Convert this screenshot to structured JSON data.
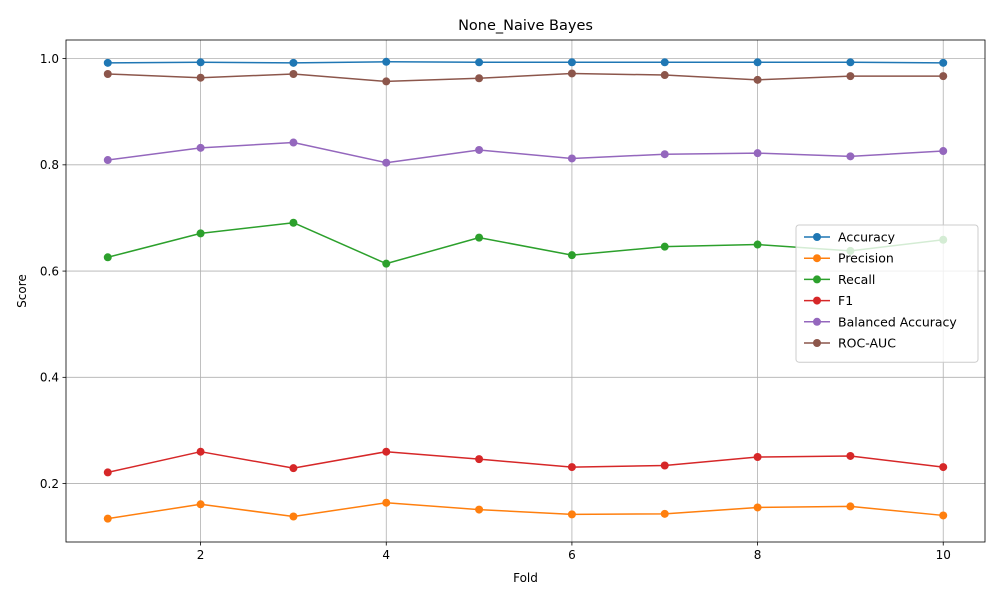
{
  "chart_data": {
    "type": "line",
    "title": "None_Naive Bayes",
    "xlabel": "Fold",
    "ylabel": "Score",
    "x": [
      1,
      2,
      3,
      4,
      5,
      6,
      7,
      8,
      9,
      10
    ],
    "xlim": [
      0.55,
      10.45
    ],
    "ylim": [
      0.09,
      1.035
    ],
    "xticks": [
      2,
      4,
      6,
      8,
      10
    ],
    "yticks": [
      0.2,
      0.4,
      0.6,
      0.8,
      1.0
    ],
    "ytick_labels": [
      "0.2",
      "0.4",
      "0.6",
      "0.8",
      "1.0"
    ],
    "grid": true,
    "legend_position": "center-right",
    "series": [
      {
        "name": "Accuracy",
        "color": "#1f77b4",
        "values": [
          0.992,
          0.993,
          0.992,
          0.994,
          0.993,
          0.993,
          0.993,
          0.993,
          0.993,
          0.992
        ]
      },
      {
        "name": "Precision",
        "color": "#ff7f0e",
        "values": [
          0.134,
          0.161,
          0.138,
          0.164,
          0.151,
          0.142,
          0.143,
          0.155,
          0.157,
          0.14
        ]
      },
      {
        "name": "Recall",
        "color": "#2ca02c",
        "values": [
          0.626,
          0.671,
          0.691,
          0.614,
          0.663,
          0.63,
          0.646,
          0.65,
          0.638,
          0.659
        ]
      },
      {
        "name": "F1",
        "color": "#d62728",
        "values": [
          0.221,
          0.26,
          0.229,
          0.26,
          0.246,
          0.231,
          0.234,
          0.25,
          0.252,
          0.231
        ]
      },
      {
        "name": "Balanced Accuracy",
        "color": "#9467bd",
        "values": [
          0.809,
          0.832,
          0.842,
          0.804,
          0.828,
          0.812,
          0.82,
          0.822,
          0.816,
          0.826
        ]
      },
      {
        "name": "ROC-AUC",
        "color": "#8c564b",
        "values": [
          0.971,
          0.964,
          0.971,
          0.957,
          0.963,
          0.972,
          0.969,
          0.96,
          0.967,
          0.967
        ]
      }
    ]
  }
}
